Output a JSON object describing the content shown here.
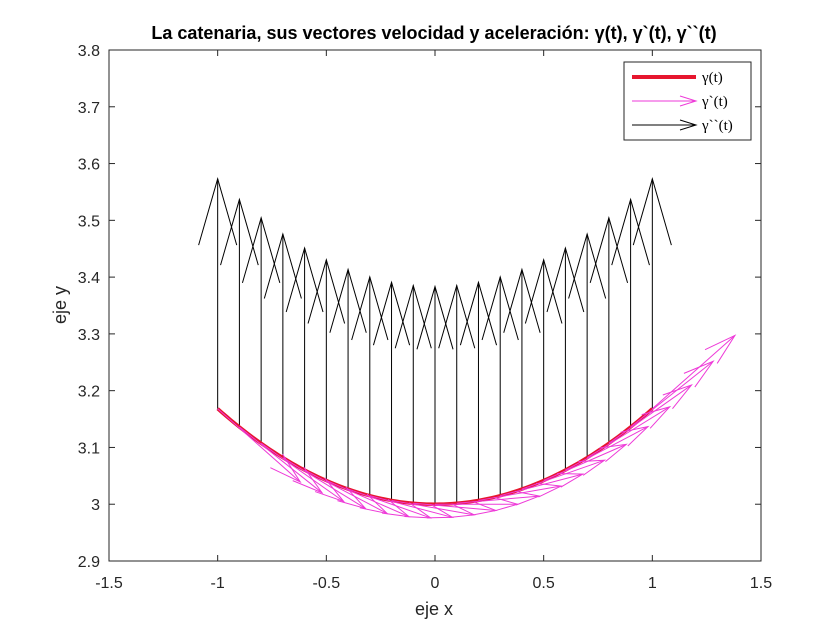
{
  "chart_data": {
    "type": "line",
    "title": "La catenaria, sus vectores velocidad y aceleración: γ(t), γ`(t), γ``(t)",
    "xlabel": "eje x",
    "ylabel": "eje y",
    "xlim": [
      -1.5,
      1.5
    ],
    "ylim": [
      2.9,
      3.8
    ],
    "xticks": [
      "-1.5",
      "-1",
      "-0.5",
      "0",
      "0.5",
      "1",
      "1.5"
    ],
    "yticks": [
      "2.9",
      "3",
      "3.1",
      "3.2",
      "3.3",
      "3.4",
      "3.5",
      "3.6",
      "3.7",
      "3.8"
    ],
    "grid": false,
    "legend_position": "top-right",
    "curve_param": {
      "a": 3,
      "y_shift": 0,
      "t_range": [
        -1,
        1
      ],
      "samples": 21
    },
    "series": [
      {
        "name": "γ(t)",
        "kind": "curve",
        "color": "#e6162e"
      },
      {
        "name": "γ`(t)",
        "kind": "velocity-vectors",
        "color": "#ee3ad8",
        "scale": 0.38
      },
      {
        "name": "γ``(t)",
        "kind": "acceleration-vectors",
        "color": "#000000",
        "scale": 1.15
      }
    ]
  }
}
